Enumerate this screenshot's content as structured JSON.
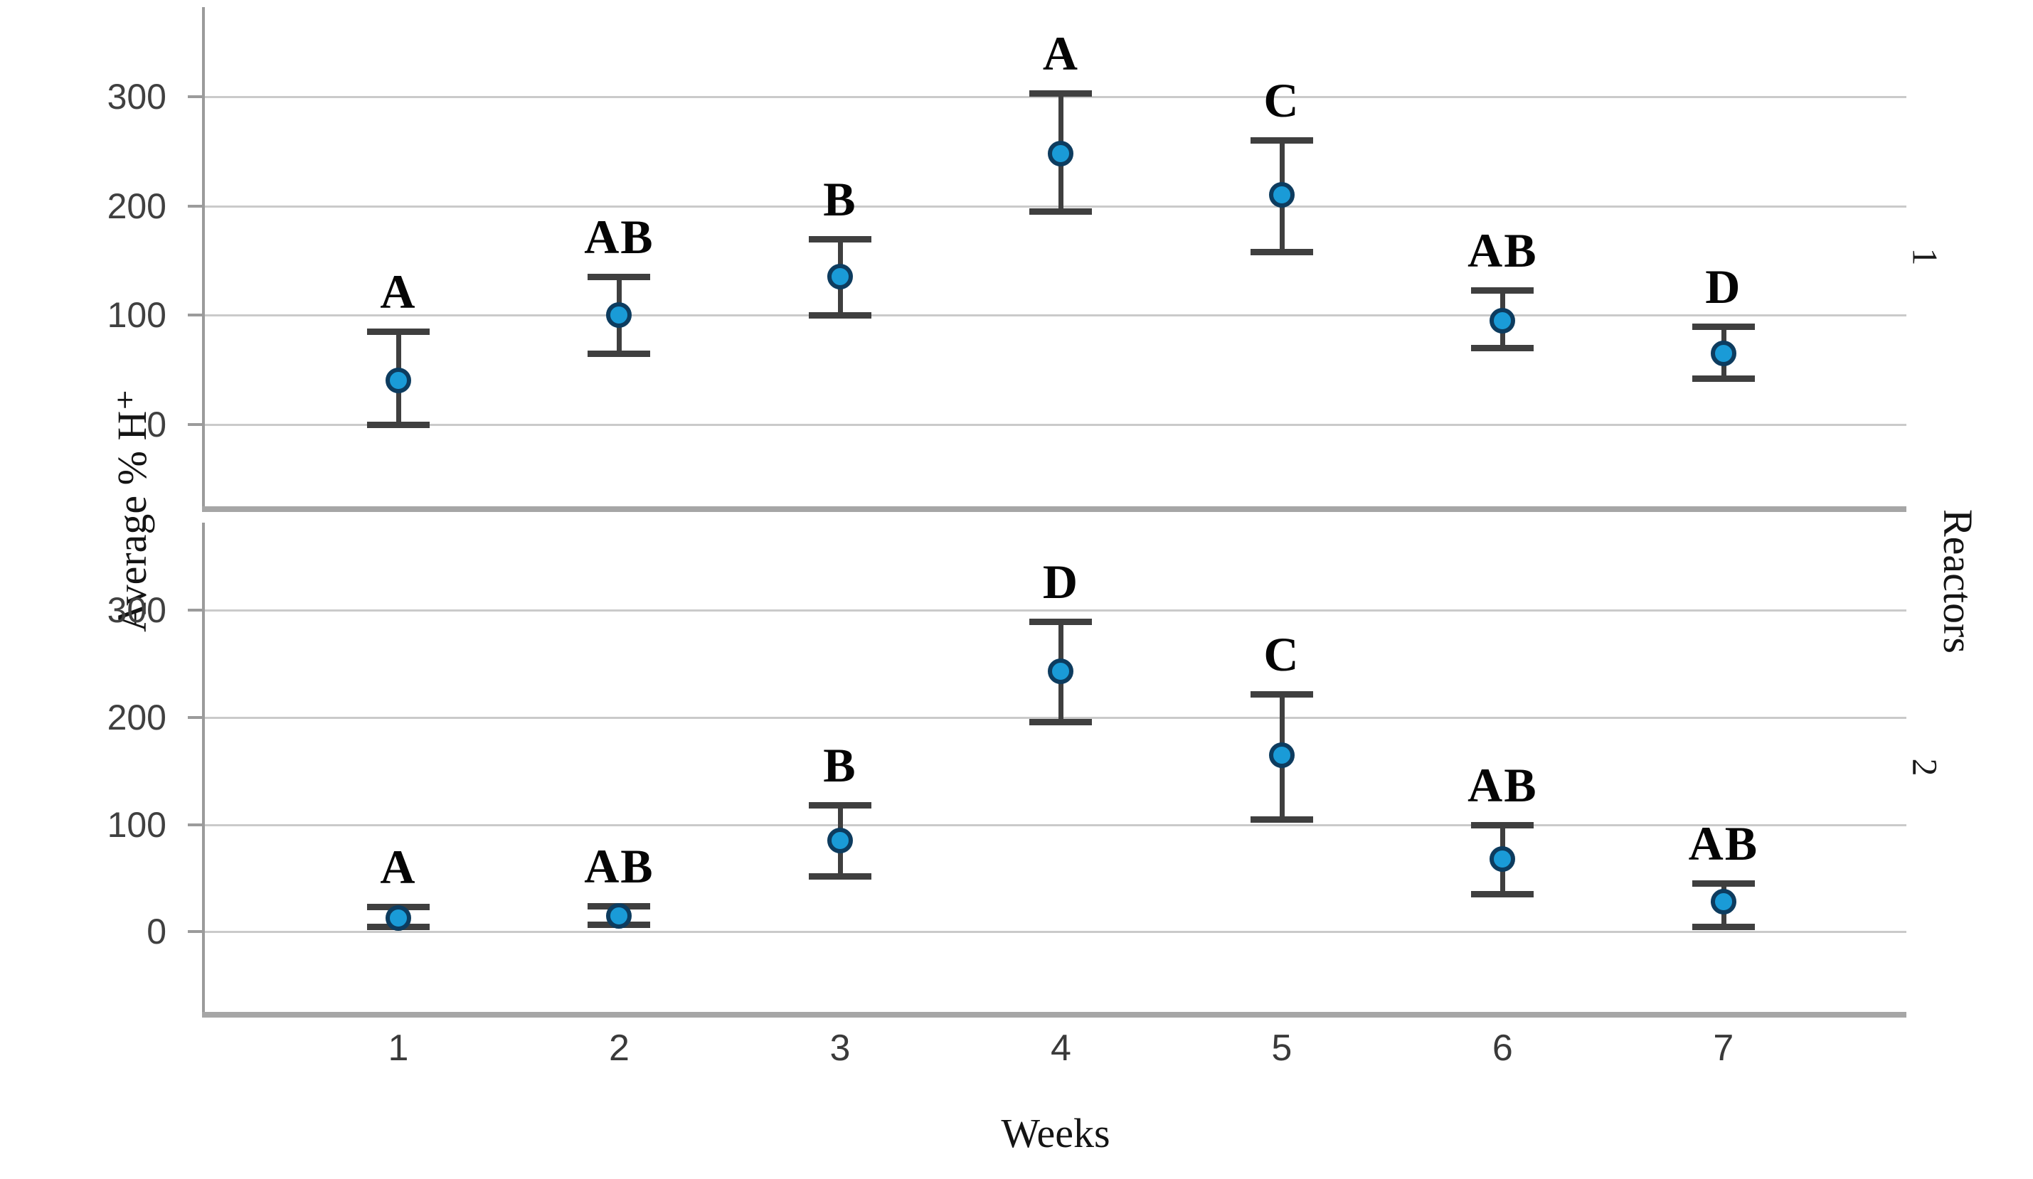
{
  "chart_data": {
    "type": "scatter",
    "subtype": "point-with-error-bars",
    "title": "",
    "xlabel": "Weeks",
    "ylabel": "Average % H⁺",
    "facet_label": "Reactors",
    "categories": [
      "1",
      "2",
      "3",
      "4",
      "5",
      "6",
      "7"
    ],
    "y_ticks": [
      0,
      100,
      200,
      300
    ],
    "ylim": [
      -75,
      382
    ],
    "grid": true,
    "legend_position": "none",
    "panels": [
      {
        "name": "1",
        "points": [
          {
            "week": "1",
            "mean": 40,
            "lo": 0,
            "hi": 85,
            "letter": "A"
          },
          {
            "week": "2",
            "mean": 100,
            "lo": 65,
            "hi": 135,
            "letter": "AB"
          },
          {
            "week": "3",
            "mean": 135,
            "lo": 100,
            "hi": 170,
            "letter": "B"
          },
          {
            "week": "4",
            "mean": 248,
            "lo": 195,
            "hi": 303,
            "letter": "A"
          },
          {
            "week": "5",
            "mean": 210,
            "lo": 158,
            "hi": 260,
            "letter": "C"
          },
          {
            "week": "6",
            "mean": 95,
            "lo": 70,
            "hi": 123,
            "letter": "AB"
          },
          {
            "week": "7",
            "mean": 65,
            "lo": 42,
            "hi": 90,
            "letter": "D"
          }
        ]
      },
      {
        "name": "2",
        "points": [
          {
            "week": "1",
            "mean": 13,
            "lo": 5,
            "hi": 23,
            "letter": "A"
          },
          {
            "week": "2",
            "mean": 15,
            "lo": 7,
            "hi": 24,
            "letter": "AB"
          },
          {
            "week": "3",
            "mean": 85,
            "lo": 52,
            "hi": 118,
            "letter": "B"
          },
          {
            "week": "4",
            "mean": 243,
            "lo": 196,
            "hi": 290,
            "letter": "D"
          },
          {
            "week": "5",
            "mean": 165,
            "lo": 105,
            "hi": 222,
            "letter": "C"
          },
          {
            "week": "6",
            "mean": 68,
            "lo": 35,
            "hi": 100,
            "letter": "AB"
          },
          {
            "week": "7",
            "mean": 28,
            "lo": 5,
            "hi": 45,
            "letter": "AB"
          }
        ]
      }
    ],
    "colors": {
      "marker_fill": "#1a9bd7",
      "marker_edge": "#0d3c5f",
      "error_bar": "#3f3f3f",
      "gridline": "#cacaca",
      "axis_line": "#9b9b9b",
      "panel_border": "#a6a6a6",
      "background": "#ffffff"
    }
  }
}
